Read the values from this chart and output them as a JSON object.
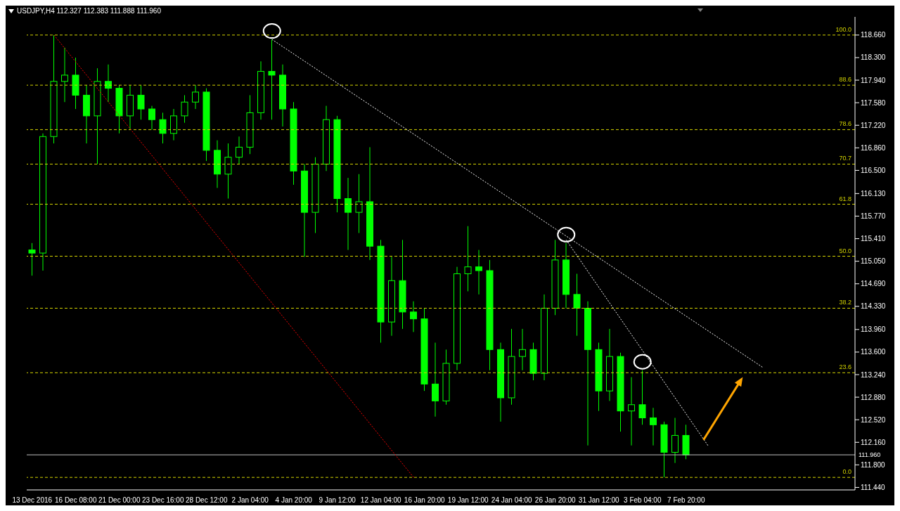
{
  "chart_data": {
    "type": "candlestick",
    "title": "USDJPY,H4  112.327 112.383 111.888 111.960",
    "color": "#00ff00",
    "categories": [
      "13 Dec 2016",
      null,
      null,
      null,
      "16 Dec 08:00",
      null,
      null,
      null,
      "21 Dec 00:00",
      null,
      null,
      null,
      "23 Dec 16:00",
      null,
      null,
      null,
      "28 Dec 12:00",
      null,
      null,
      null,
      "2 Jan 04:00",
      null,
      null,
      null,
      "4 Jan 20:00",
      null,
      null,
      null,
      "9 Jan 12:00",
      null,
      null,
      null,
      "12 Jan 04:00",
      null,
      null,
      null,
      "16 Jan 20:00",
      null,
      null,
      null,
      "19 Jan 12:00",
      null,
      null,
      null,
      "24 Jan 04:00",
      null,
      null,
      null,
      "26 Jan 20:00",
      null,
      null,
      null,
      "31 Jan 12:00",
      null,
      null,
      null,
      "3 Feb 04:00",
      null,
      null,
      null,
      "7 Feb 20:00",
      null,
      null,
      null,
      null,
      null,
      null,
      null,
      null,
      null,
      null,
      null,
      null,
      null,
      null,
      null
    ],
    "ohlc": [
      [
        115.23,
        115.34,
        114.82,
        115.18
      ],
      [
        115.18,
        117.09,
        114.9,
        117.04
      ],
      [
        117.04,
        118.66,
        116.93,
        117.92
      ],
      [
        117.92,
        118.46,
        117.59,
        118.02
      ],
      [
        118.02,
        118.3,
        117.48,
        117.7
      ],
      [
        117.7,
        117.86,
        116.93,
        117.37
      ],
      [
        117.37,
        118.13,
        116.6,
        117.92
      ],
      [
        117.92,
        118.19,
        117.59,
        117.81
      ],
      [
        117.81,
        117.86,
        117.09,
        117.37
      ],
      [
        117.37,
        117.86,
        117.15,
        117.7
      ],
      [
        117.7,
        117.86,
        117.31,
        117.48
      ],
      [
        117.48,
        117.53,
        117.15,
        117.31
      ],
      [
        117.31,
        117.42,
        116.93,
        117.09
      ],
      [
        117.09,
        117.48,
        116.98,
        117.37
      ],
      [
        117.37,
        117.7,
        117.26,
        117.59
      ],
      [
        117.59,
        117.86,
        117.48,
        117.75
      ],
      [
        117.75,
        117.81,
        116.65,
        116.82
      ],
      [
        116.82,
        116.98,
        116.22,
        116.44
      ],
      [
        116.44,
        116.93,
        116.05,
        116.71
      ],
      [
        116.71,
        117.04,
        116.6,
        116.87
      ],
      [
        116.87,
        117.7,
        116.76,
        117.42
      ],
      [
        117.42,
        118.24,
        117.31,
        118.08
      ],
      [
        118.08,
        118.59,
        117.31,
        118.02
      ],
      [
        118.02,
        118.19,
        117.2,
        117.48
      ],
      [
        117.48,
        117.59,
        116.27,
        116.49
      ],
      [
        116.49,
        116.6,
        115.12,
        115.83
      ],
      [
        115.83,
        116.71,
        115.5,
        116.6
      ],
      [
        116.6,
        117.53,
        116.49,
        117.31
      ],
      [
        117.31,
        117.37,
        115.83,
        116.05
      ],
      [
        116.05,
        116.38,
        115.23,
        115.83
      ],
      [
        115.83,
        116.44,
        115.5,
        116.0
      ],
      [
        116.0,
        116.87,
        115.07,
        115.29
      ],
      [
        115.29,
        115.39,
        113.75,
        114.08
      ],
      [
        114.08,
        115.12,
        113.86,
        114.74
      ],
      [
        114.74,
        115.39,
        113.97,
        114.24
      ],
      [
        114.24,
        114.41,
        113.92,
        114.13
      ],
      [
        114.13,
        114.3,
        112.98,
        113.09
      ],
      [
        113.09,
        113.75,
        112.57,
        112.82
      ],
      [
        112.82,
        113.64,
        112.76,
        113.42
      ],
      [
        113.42,
        114.96,
        113.31,
        114.85
      ],
      [
        114.85,
        115.61,
        114.57,
        114.96
      ],
      [
        114.96,
        115.23,
        114.52,
        114.9
      ],
      [
        114.9,
        115.07,
        113.31,
        113.64
      ],
      [
        113.64,
        113.75,
        112.49,
        112.87
      ],
      [
        112.87,
        113.97,
        112.76,
        113.53
      ],
      [
        113.53,
        113.97,
        113.31,
        113.64
      ],
      [
        113.64,
        113.75,
        113.15,
        113.26
      ],
      [
        113.26,
        114.52,
        113.15,
        114.3
      ],
      [
        114.3,
        115.39,
        114.19,
        115.07
      ],
      [
        115.07,
        115.34,
        114.3,
        114.52
      ],
      [
        114.52,
        114.85,
        113.86,
        114.3
      ],
      [
        114.3,
        114.41,
        112.11,
        113.64
      ],
      [
        113.64,
        113.75,
        112.66,
        112.98
      ],
      [
        112.98,
        113.97,
        112.82,
        113.53
      ],
      [
        113.53,
        113.59,
        112.33,
        112.66
      ],
      [
        112.66,
        113.2,
        112.11,
        112.76
      ],
      [
        112.76,
        113.31,
        112.44,
        112.55
      ],
      [
        112.55,
        112.71,
        112.11,
        112.44
      ],
      [
        112.44,
        112.49,
        111.6,
        112.0
      ],
      [
        112.0,
        112.55,
        111.83,
        112.27
      ],
      [
        112.27,
        112.44,
        111.89,
        111.96
      ],
      null,
      null,
      null,
      null,
      null,
      null,
      null,
      null,
      null,
      null,
      null,
      null,
      null,
      null,
      null
    ],
    "series": [
      {
        "type": "line",
        "color": "#ffffff",
        "line_style": "dotted",
        "values": [
          null,
          null,
          null,
          null,
          null,
          null,
          null,
          null,
          null,
          null,
          null,
          null,
          null,
          null,
          null,
          null,
          null,
          null,
          null,
          null,
          null,
          null,
          118.59,
          null,
          null,
          null,
          null,
          null,
          null,
          null,
          null,
          null,
          null,
          null,
          null,
          null,
          null,
          null,
          null,
          null,
          null,
          null,
          null,
          null,
          null,
          null,
          null,
          null,
          null,
          null,
          null,
          null,
          null,
          null,
          null,
          null,
          null,
          null,
          null,
          null,
          null,
          null,
          null,
          null,
          null,
          null,
          null,
          113.36,
          null,
          null,
          null,
          null,
          null,
          null,
          null,
          null
        ]
      },
      {
        "type": "line",
        "color": "#ff0000",
        "line_style": "dotted",
        "values": [
          null,
          null,
          118.66,
          null,
          null,
          null,
          null,
          null,
          null,
          null,
          null,
          null,
          null,
          null,
          null,
          null,
          null,
          null,
          null,
          null,
          null,
          null,
          null,
          null,
          null,
          null,
          null,
          null,
          null,
          null,
          null,
          null,
          null,
          null,
          null,
          111.6,
          null,
          null,
          null,
          null,
          null,
          null,
          null,
          null,
          null,
          null,
          null,
          null,
          null,
          null,
          null,
          null,
          null,
          null,
          null,
          null,
          null,
          null,
          null,
          null,
          null,
          null,
          null,
          null,
          null,
          null,
          null,
          null,
          null,
          null,
          null,
          null,
          null,
          null,
          null,
          null
        ]
      },
      {
        "type": "line",
        "color": "#ffffff",
        "line_style": "dotted",
        "values": [
          null,
          null,
          null,
          null,
          null,
          null,
          null,
          null,
          null,
          null,
          null,
          null,
          null,
          null,
          null,
          null,
          null,
          null,
          null,
          null,
          null,
          null,
          null,
          null,
          null,
          null,
          null,
          null,
          null,
          null,
          null,
          null,
          null,
          null,
          null,
          null,
          null,
          null,
          null,
          null,
          null,
          null,
          null,
          null,
          null,
          null,
          null,
          null,
          null,
          115.39,
          null,
          null,
          null,
          null,
          null,
          null,
          null,
          null,
          null,
          null,
          null,
          null,
          112.11,
          null,
          null,
          null,
          null,
          null,
          null,
          null,
          null,
          null,
          null,
          null,
          null,
          null
        ]
      }
    ],
    "ylim": [
      111.4,
      118.95
    ],
    "yticks": [
      {
        "value": 118.66,
        "label": "118.660"
      },
      {
        "value": 118.3,
        "label": "118.300"
      },
      {
        "value": 117.94,
        "label": "117.940"
      },
      {
        "value": 117.58,
        "label": "117.580"
      },
      {
        "value": 117.22,
        "label": "117.220"
      },
      {
        "value": 116.86,
        "label": "116.860"
      },
      {
        "value": 116.5,
        "label": "116.500"
      },
      {
        "value": 116.13,
        "label": "116.130"
      },
      {
        "value": 115.77,
        "label": "115.770"
      },
      {
        "value": 115.41,
        "label": "115.410"
      },
      {
        "value": 115.05,
        "label": "115.050"
      },
      {
        "value": 114.69,
        "label": "114.690"
      },
      {
        "value": 114.33,
        "label": "114.330"
      },
      {
        "value": 113.96,
        "label": "113.960"
      },
      {
        "value": 113.6,
        "label": "113.600"
      },
      {
        "value": 113.24,
        "label": "113.240"
      },
      {
        "value": 112.88,
        "label": "112.880"
      },
      {
        "value": 112.52,
        "label": "112.520"
      },
      {
        "value": 112.16,
        "label": "112.160"
      },
      {
        "value": 111.8,
        "label": "111.800"
      },
      {
        "value": 111.44,
        "label": "111.440"
      }
    ],
    "ref_lines": [
      {
        "axis": "y",
        "value": 118.66,
        "color": "#d4d400",
        "line_style": "dashed"
      },
      {
        "axis": "y",
        "value": 117.86,
        "color": "#d4d400",
        "line_style": "dashed"
      },
      {
        "axis": "y",
        "value": 117.15,
        "color": "#d4d400",
        "line_style": "dashed"
      },
      {
        "axis": "y",
        "value": 116.6,
        "color": "#d4d400",
        "line_style": "dashed"
      },
      {
        "axis": "y",
        "value": 115.96,
        "color": "#d4d400",
        "line_style": "dashed"
      },
      {
        "axis": "y",
        "value": 115.13,
        "color": "#d4d400",
        "line_style": "dashed"
      },
      {
        "axis": "y",
        "value": 114.3,
        "color": "#d4d400",
        "line_style": "dashed"
      },
      {
        "axis": "y",
        "value": 113.27,
        "color": "#d4d400",
        "line_style": "dashed"
      },
      {
        "axis": "y",
        "value": 111.6,
        "color": "#d4d400",
        "line_style": "dashed"
      },
      {
        "axis": "y",
        "value": 111.96,
        "label": "111.960",
        "color": "#c0c0c0",
        "line_style": "solid"
      }
    ],
    "annotations": [
      {
        "text": "100.0",
        "y": 118.66
      },
      {
        "text": "88.6",
        "y": 117.86
      },
      {
        "text": "78.6",
        "y": 117.15
      },
      {
        "text": "70.7",
        "y": 116.6
      },
      {
        "text": "61.8",
        "y": 115.96
      },
      {
        "text": "50.0",
        "y": 115.13
      },
      {
        "text": "38.2",
        "y": 114.3
      },
      {
        "text": "23.6",
        "y": 113.27
      },
      {
        "text": "0.0",
        "y": 111.6
      }
    ],
    "grid": false,
    "legend": false
  }
}
